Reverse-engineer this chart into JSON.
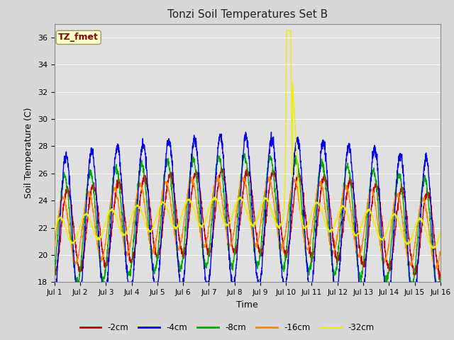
{
  "title": "Tonzi Soil Temperatures Set B",
  "xlabel": "Time",
  "ylabel": "Soil Temperature (C)",
  "ylim": [
    18,
    37
  ],
  "yticks": [
    18,
    20,
    22,
    24,
    26,
    28,
    30,
    32,
    34,
    36
  ],
  "bg_color": "#d8d8d8",
  "plot_bg_color": "#e0e0e0",
  "grid_color": "#ffffff",
  "annotation_label": "TZ_fmet",
  "annotation_bg": "#ffffcc",
  "annotation_fg": "#8b0000",
  "legend_entries": [
    "-2cm",
    "-4cm",
    "-8cm",
    "-16cm",
    "-32cm"
  ],
  "line_colors": [
    "#cc0000",
    "#0000ee",
    "#00aa00",
    "#ff8800",
    "#eeee00"
  ],
  "n_days": 15,
  "points_per_day": 144
}
